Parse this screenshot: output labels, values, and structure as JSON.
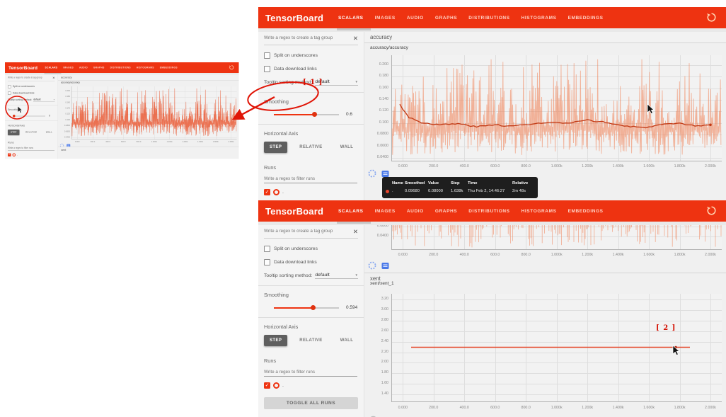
{
  "header": {
    "title": "TensorBoard",
    "tabs": [
      "SCALARS",
      "IMAGES",
      "AUDIO",
      "GRAPHS",
      "DISTRIBUTIONS",
      "HISTOGRAMS",
      "EMBEDDINGS"
    ],
    "active_tab": "SCALARS",
    "refresh_icon": "refresh-icon"
  },
  "sidebar": {
    "tag_filter_placeholder": "Write a regex to create a tag group",
    "close_icon": "✕",
    "split_label": "Split on underscores",
    "download_label": "Data download links",
    "tooltip_sort_label": "Tooltip sorting method:",
    "tooltip_sort_value": "default",
    "smoothing_label": "Smoothing",
    "axis_label": "Horizontal Axis",
    "axis_options": [
      "STEP",
      "RELATIVE",
      "WALL"
    ],
    "axis_active": "STEP",
    "runs_label": "Runs",
    "runs_filter_placeholder": "Write a regex to filter runs",
    "run_name": ".",
    "run_check": "✓"
  },
  "top_panel": {
    "smoothing_value": "0.6"
  },
  "bottom_panel": {
    "smoothing_value": "0.594",
    "toggle_all_label": "TOGGLE ALL RUNS"
  },
  "thumbnail": {
    "smoothing_value": "0"
  },
  "tooltip": {
    "headers": [
      "Name",
      "Smoothed",
      "Value",
      "Step",
      "Time",
      "Relative"
    ],
    "row": {
      "name": ".",
      "smoothed": "0.09680",
      "value": "0.08000",
      "step": "1.638k",
      "time": "Thu Feb 2, 14:46:27",
      "relative": "2m 48s"
    }
  },
  "annotations": {
    "marker1": "[ 1 ]",
    "marker2": "[ 2 ]"
  },
  "chart_data": [
    {
      "id": "accuracy",
      "type": "line",
      "section": "accuracy",
      "title": "accuracy/accuracy",
      "x_tick_labels": [
        "0.000",
        "200.0",
        "400.0",
        "600.0",
        "800.0",
        "1.000k",
        "1.200k",
        "1.400k",
        "1.600k",
        "1.800k",
        "2.000k"
      ],
      "y_tick_labels": [
        "0.200",
        "0.180",
        "0.160",
        "0.140",
        "0.120",
        "0.100",
        "0.0800",
        "0.0600",
        "0.0400"
      ],
      "x_range_steps": [
        -70,
        2070
      ],
      "y_top_value": 0.2,
      "y_tick_step": 0.02,
      "series": [
        {
          "name": "raw",
          "style": "noise",
          "color": "#f07c4e",
          "mean": 0.09,
          "min": 0.045,
          "max": 0.21
        },
        {
          "name": "smoothed",
          "style": "line",
          "color": "#c23914",
          "points": [
            [
              -20,
              0.132
            ],
            [
              40,
              0.11
            ],
            [
              120,
              0.101
            ],
            [
              240,
              0.097
            ],
            [
              360,
              0.099
            ],
            [
              480,
              0.0935
            ],
            [
              600,
              0.0975
            ],
            [
              700,
              0.0945
            ],
            [
              840,
              0.0985
            ],
            [
              960,
              0.101
            ],
            [
              1080,
              0.0995
            ],
            [
              1200,
              0.105
            ],
            [
              1300,
              0.102
            ],
            [
              1440,
              0.095
            ],
            [
              1560,
              0.092
            ],
            [
              1680,
              0.097
            ],
            [
              1800,
              0.099
            ],
            [
              1900,
              0.095
            ],
            [
              2000,
              0.097
            ]
          ]
        }
      ]
    },
    {
      "id": "accuracy-fragment",
      "type": "line",
      "note": "lower portion of the accuracy chart visible below the header in the scrolled window",
      "x_tick_labels": [
        "0.000",
        "200.0",
        "400.0",
        "600.0",
        "800.0",
        "1.000k",
        "1.200k",
        "1.400k",
        "1.600k",
        "1.800k",
        "2.000k"
      ],
      "y_tick_labels": [
        "0.0800",
        "0.0400"
      ],
      "series": [
        {
          "name": "raw",
          "style": "noise-spikes",
          "color": "#f07c4e"
        }
      ]
    },
    {
      "id": "xent",
      "type": "line",
      "section": "xent",
      "title": "xent/xent_1",
      "x_tick_labels": [
        "0.000",
        "200.0",
        "400.0",
        "600.0",
        "800.0",
        "1.000k",
        "1.200k",
        "1.400k",
        "1.600k",
        "1.800k",
        "2.000k"
      ],
      "y_tick_labels": [
        "3.20",
        "3.00",
        "2.80",
        "2.60",
        "2.40",
        "2.20",
        "2.00",
        "1.80",
        "1.60",
        "1.40"
      ],
      "y_top_value": 3.2,
      "y_tick_step": 0.2,
      "series": [
        {
          "name": "xent/xent_1",
          "style": "flat",
          "color": "#e5472a",
          "value": 2.3,
          "x_range_steps": [
            50,
            1870
          ]
        }
      ]
    }
  ]
}
